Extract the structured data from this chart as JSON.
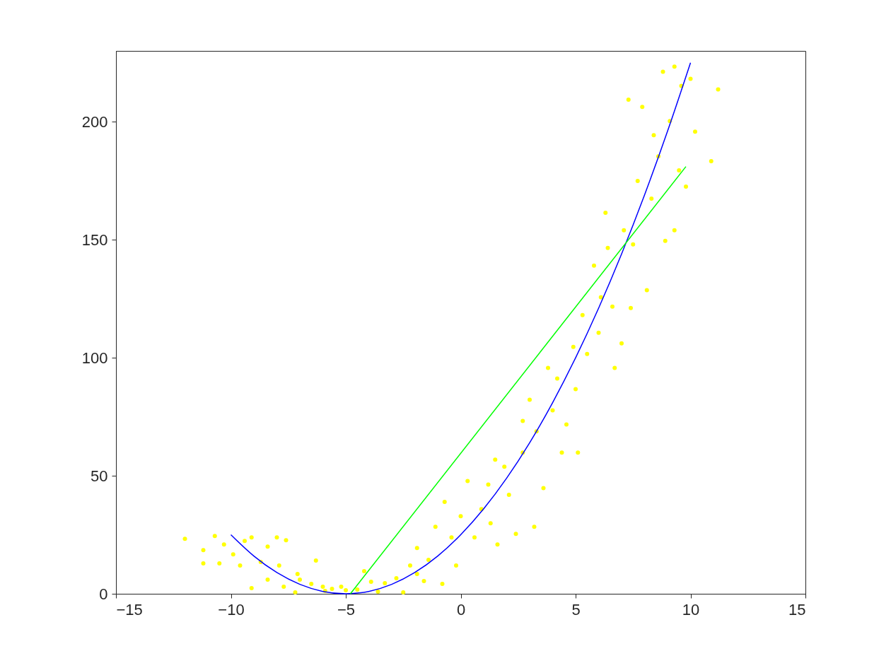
{
  "chart_data": {
    "type": "scatter",
    "xlim": [
      -15,
      15
    ],
    "ylim": [
      0,
      230
    ],
    "xticks": [
      -15,
      -10,
      -5,
      0,
      5,
      10,
      15
    ],
    "yticks": [
      0,
      50,
      100,
      150,
      200
    ],
    "grid": false,
    "legend": false,
    "series": [
      {
        "type": "scatter",
        "marker": "circle",
        "color": "#ffff00",
        "x": [
          -12.0,
          -11.2,
          -11.2,
          -10.7,
          -10.3,
          -9.9,
          -10.5,
          -9.4,
          -9.1,
          -9.6,
          -9.1,
          -8.7,
          -8.4,
          -8.0,
          -7.6,
          -7.9,
          -8.4,
          -7.7,
          -7.2,
          -7.0,
          -6.5,
          -6.3,
          -6.0,
          -5.6,
          -5.9,
          -5.0,
          -5.2,
          -4.5,
          -4.2,
          -3.9,
          -3.6,
          -3.3,
          -2.8,
          -2.5,
          -2.2,
          -1.9,
          -1.9,
          -1.4,
          -1.6,
          -1.1,
          -0.8,
          -0.7,
          -0.4,
          -0.2,
          0.0,
          0.3,
          0.6,
          0.9,
          1.2,
          1.3,
          1.5,
          1.6,
          1.9,
          2.1,
          2.4,
          2.7,
          2.7,
          3.0,
          3.2,
          3.3,
          3.6,
          3.8,
          4.0,
          4.2,
          4.4,
          4.6,
          4.9,
          5.0,
          5.1,
          5.3,
          5.5,
          5.8,
          6.0,
          6.1,
          6.3,
          6.4,
          6.6,
          6.7,
          7.0,
          7.1,
          7.3,
          7.4,
          7.5,
          7.7,
          7.9,
          8.1,
          8.3,
          8.4,
          8.6,
          8.8,
          8.9,
          9.1,
          9.3,
          9.3,
          9.5,
          9.6,
          9.8,
          10.0,
          10.2,
          10.9,
          11.2,
          -7.1
        ],
        "values": [
          23.3,
          18.5,
          12.9,
          24.5,
          20.9,
          16.7,
          12.9,
          22.4,
          23.9,
          12.0,
          2.4,
          13.5,
          20.0,
          23.9,
          22.7,
          12.0,
          6.0,
          3.0,
          0.6,
          6.0,
          4.2,
          14.1,
          3.0,
          2.1,
          1.2,
          1.5,
          3.0,
          1.8,
          9.6,
          5.1,
          0.9,
          4.5,
          6.6,
          0.6,
          12.0,
          19.4,
          8.4,
          14.4,
          5.4,
          28.4,
          4.2,
          38.9,
          23.9,
          12.0,
          32.9,
          47.8,
          23.9,
          35.9,
          46.3,
          29.9,
          56.8,
          20.9,
          53.8,
          41.9,
          25.4,
          59.8,
          73.2,
          82.2,
          28.4,
          68.8,
          44.8,
          95.7,
          77.7,
          91.2,
          59.8,
          71.7,
          104.6,
          86.7,
          59.8,
          118.1,
          101.6,
          139.0,
          110.6,
          125.6,
          161.4,
          146.5,
          121.7,
          95.7,
          106.1,
          154.0,
          209.3,
          121.1,
          148.0,
          174.9,
          206.3,
          128.6,
          167.4,
          194.3,
          185.3,
          221.2,
          149.5,
          200.3,
          154.0,
          223.3,
          179.4,
          215.2,
          172.5,
          218.2,
          195.8,
          183.3,
          213.7,
          8.4
        ]
      },
      {
        "type": "line",
        "color": "#0000ff",
        "x": [
          -10,
          -9,
          -8,
          -7,
          -6,
          -5,
          -4,
          -3,
          -2,
          -1,
          0,
          1,
          2,
          3,
          4,
          5,
          6,
          7,
          8,
          9,
          10
        ],
        "values": [
          25,
          16,
          9,
          4,
          1,
          0,
          1,
          4,
          9,
          16,
          25,
          36,
          49,
          64,
          81,
          100,
          121,
          144,
          169,
          196,
          225
        ]
      },
      {
        "type": "line",
        "color": "#00ff00",
        "x": [
          -4.8,
          9.8
        ],
        "values": [
          0,
          181
        ]
      }
    ]
  }
}
